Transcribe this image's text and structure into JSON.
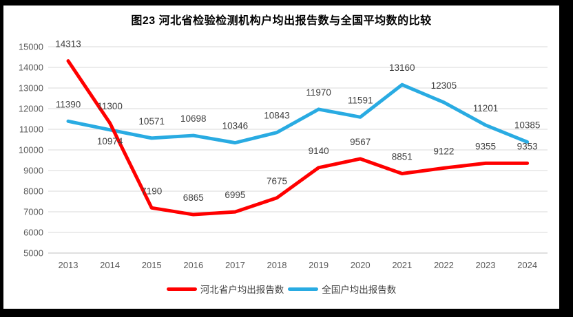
{
  "window": {
    "frame_color": "#000000",
    "canvas_color": "#ffffff"
  },
  "title": "图23  河北省检验检测机构户均出报告数与全国平均数的比较",
  "chart_data": {
    "type": "line",
    "categories": [
      "2013",
      "2014",
      "2015",
      "2016",
      "2017",
      "2018",
      "2019",
      "2020",
      "2021",
      "2022",
      "2023",
      "2024"
    ],
    "series": [
      {
        "name": "河北省户均出报告数",
        "color": "#FF0000",
        "values": [
          14313,
          11300,
          7190,
          6865,
          6995,
          7675,
          9140,
          9567,
          8851,
          9122,
          9355,
          9353
        ]
      },
      {
        "name": "全国户均出报告数",
        "color": "#29ABE2",
        "values": [
          11390,
          10974,
          10571,
          10698,
          10346,
          10843,
          11970,
          11591,
          13160,
          12305,
          11201,
          10385
        ]
      }
    ],
    "ylim": [
      5000,
      15000
    ],
    "ytick_step": 1000,
    "grid": true,
    "data_labels": true,
    "legend_position": "bottom",
    "label_below_points": [
      [
        1,
        1
      ]
    ],
    "colors": {
      "gridline": "#D9D9D9",
      "axis_line": "#BFBFBF",
      "tick_label": "#595959",
      "data_label": "#404040",
      "title": "#000000",
      "legend_label": "#404040"
    }
  }
}
